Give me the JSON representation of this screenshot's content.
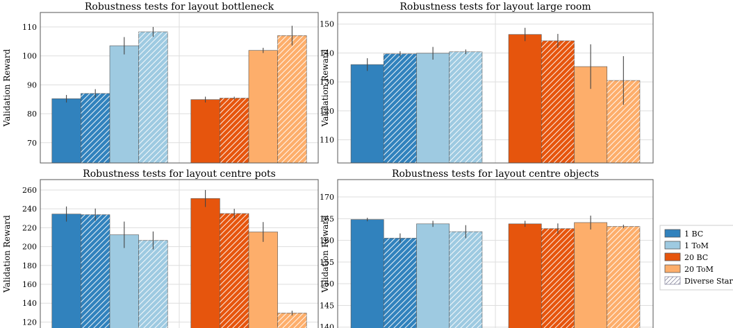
{
  "colors": {
    "1 BC": "#3182bd",
    "1 ToM": "#9ecae1",
    "20 BC": "#e6550d",
    "20 ToM": "#fdae6b",
    "grid": "#dddddd",
    "error_bar": "#444444"
  },
  "legend": {
    "placement": "right",
    "entries": [
      "1 BC",
      "1 ToM",
      "20 BC",
      "20 ToM",
      "Diverse Starts"
    ]
  },
  "chart_data": [
    {
      "type": "bar",
      "title": "Robustness tests for layout bottleneck",
      "ylabel": "Validation Reward",
      "ylim": [
        63,
        115
      ],
      "yticks": [
        70,
        80,
        90,
        100,
        110
      ],
      "grid": true,
      "groups": [
        {
          "label": "",
          "bars": [
            {
              "series": "1 BC",
              "diverse": false,
              "value": 85.2,
              "err": 1.3
            },
            {
              "series": "1 BC",
              "diverse": true,
              "value": 87.0,
              "err": 1.5
            },
            {
              "series": "1 ToM",
              "diverse": false,
              "value": 103.5,
              "err": 3.0
            },
            {
              "series": "1 ToM",
              "diverse": true,
              "value": 108.3,
              "err": 1.7
            }
          ]
        },
        {
          "label": "",
          "bars": [
            {
              "series": "20 BC",
              "diverse": false,
              "value": 84.9,
              "err": 1.0
            },
            {
              "series": "20 BC",
              "diverse": true,
              "value": 85.4,
              "err": 0.5
            },
            {
              "series": "20 ToM",
              "diverse": false,
              "value": 101.9,
              "err": 0.9
            },
            {
              "series": "20 ToM",
              "diverse": true,
              "value": 107.0,
              "err": 3.4
            }
          ]
        }
      ]
    },
    {
      "type": "bar",
      "title": "Robustness tests for layout large room",
      "ylabel": "Validation Reward",
      "ylim": [
        102,
        154
      ],
      "yticks": [
        110,
        120,
        130,
        140,
        150
      ],
      "grid": true,
      "groups": [
        {
          "label": "",
          "bars": [
            {
              "series": "1 BC",
              "diverse": false,
              "value": 136.0,
              "err": 2.2
            },
            {
              "series": "1 BC",
              "diverse": true,
              "value": 139.7,
              "err": 0.9
            },
            {
              "series": "1 ToM",
              "diverse": false,
              "value": 139.9,
              "err": 2.2
            },
            {
              "series": "1 ToM",
              "diverse": true,
              "value": 140.4,
              "err": 0.8
            }
          ]
        },
        {
          "label": "",
          "bars": [
            {
              "series": "20 BC",
              "diverse": false,
              "value": 146.4,
              "err": 2.3
            },
            {
              "series": "20 BC",
              "diverse": true,
              "value": 144.2,
              "err": 2.4
            },
            {
              "series": "20 ToM",
              "diverse": false,
              "value": 135.3,
              "err": 7.7
            },
            {
              "series": "20 ToM",
              "diverse": true,
              "value": 130.5,
              "err": 8.4
            }
          ]
        }
      ]
    },
    {
      "type": "bar",
      "title": "Robustness tests for layout centre pots",
      "ylabel": "Validation Reward",
      "ylim": [
        110,
        271
      ],
      "yticks": [
        120,
        140,
        160,
        180,
        200,
        220,
        240,
        260
      ],
      "grid": true,
      "groups": [
        {
          "label": "",
          "bars": [
            {
              "series": "1 BC",
              "diverse": false,
              "value": 234.5,
              "err": 8.0
            },
            {
              "series": "1 BC",
              "diverse": true,
              "value": 233.8,
              "err": 6.5
            },
            {
              "series": "1 ToM",
              "diverse": false,
              "value": 212.5,
              "err": 14.0
            },
            {
              "series": "1 ToM",
              "diverse": true,
              "value": 206.5,
              "err": 9.5
            }
          ]
        },
        {
          "label": "",
          "bars": [
            {
              "series": "20 BC",
              "diverse": false,
              "value": 251.0,
              "err": 9.0
            },
            {
              "series": "20 BC",
              "diverse": true,
              "value": 235.0,
              "err": 5.0
            },
            {
              "series": "20 ToM",
              "diverse": false,
              "value": 215.5,
              "err": 10.5
            },
            {
              "series": "20 ToM",
              "diverse": true,
              "value": 129.5,
              "err": 2.5
            }
          ]
        }
      ]
    },
    {
      "type": "bar",
      "title": "Robustness tests for layout centre objects",
      "ylabel": "Validation Reward",
      "ylim": [
        139,
        174
      ],
      "yticks": [
        140,
        145,
        150,
        155,
        160,
        165,
        170
      ],
      "grid": true,
      "groups": [
        {
          "label": "",
          "bars": [
            {
              "series": "1 BC",
              "diverse": false,
              "value": 164.8,
              "err": 0.4
            },
            {
              "series": "1 BC",
              "diverse": true,
              "value": 160.5,
              "err": 1.1
            },
            {
              "series": "1 ToM",
              "diverse": false,
              "value": 163.8,
              "err": 0.7
            },
            {
              "series": "1 ToM",
              "diverse": true,
              "value": 162.0,
              "err": 1.5
            }
          ]
        },
        {
          "label": "",
          "bars": [
            {
              "series": "20 BC",
              "diverse": false,
              "value": 163.8,
              "err": 0.7
            },
            {
              "series": "20 BC",
              "diverse": true,
              "value": 162.7,
              "err": 1.2
            },
            {
              "series": "20 ToM",
              "diverse": false,
              "value": 164.1,
              "err": 1.6
            },
            {
              "series": "20 ToM",
              "diverse": true,
              "value": 163.2,
              "err": 0.4
            }
          ]
        }
      ]
    }
  ]
}
